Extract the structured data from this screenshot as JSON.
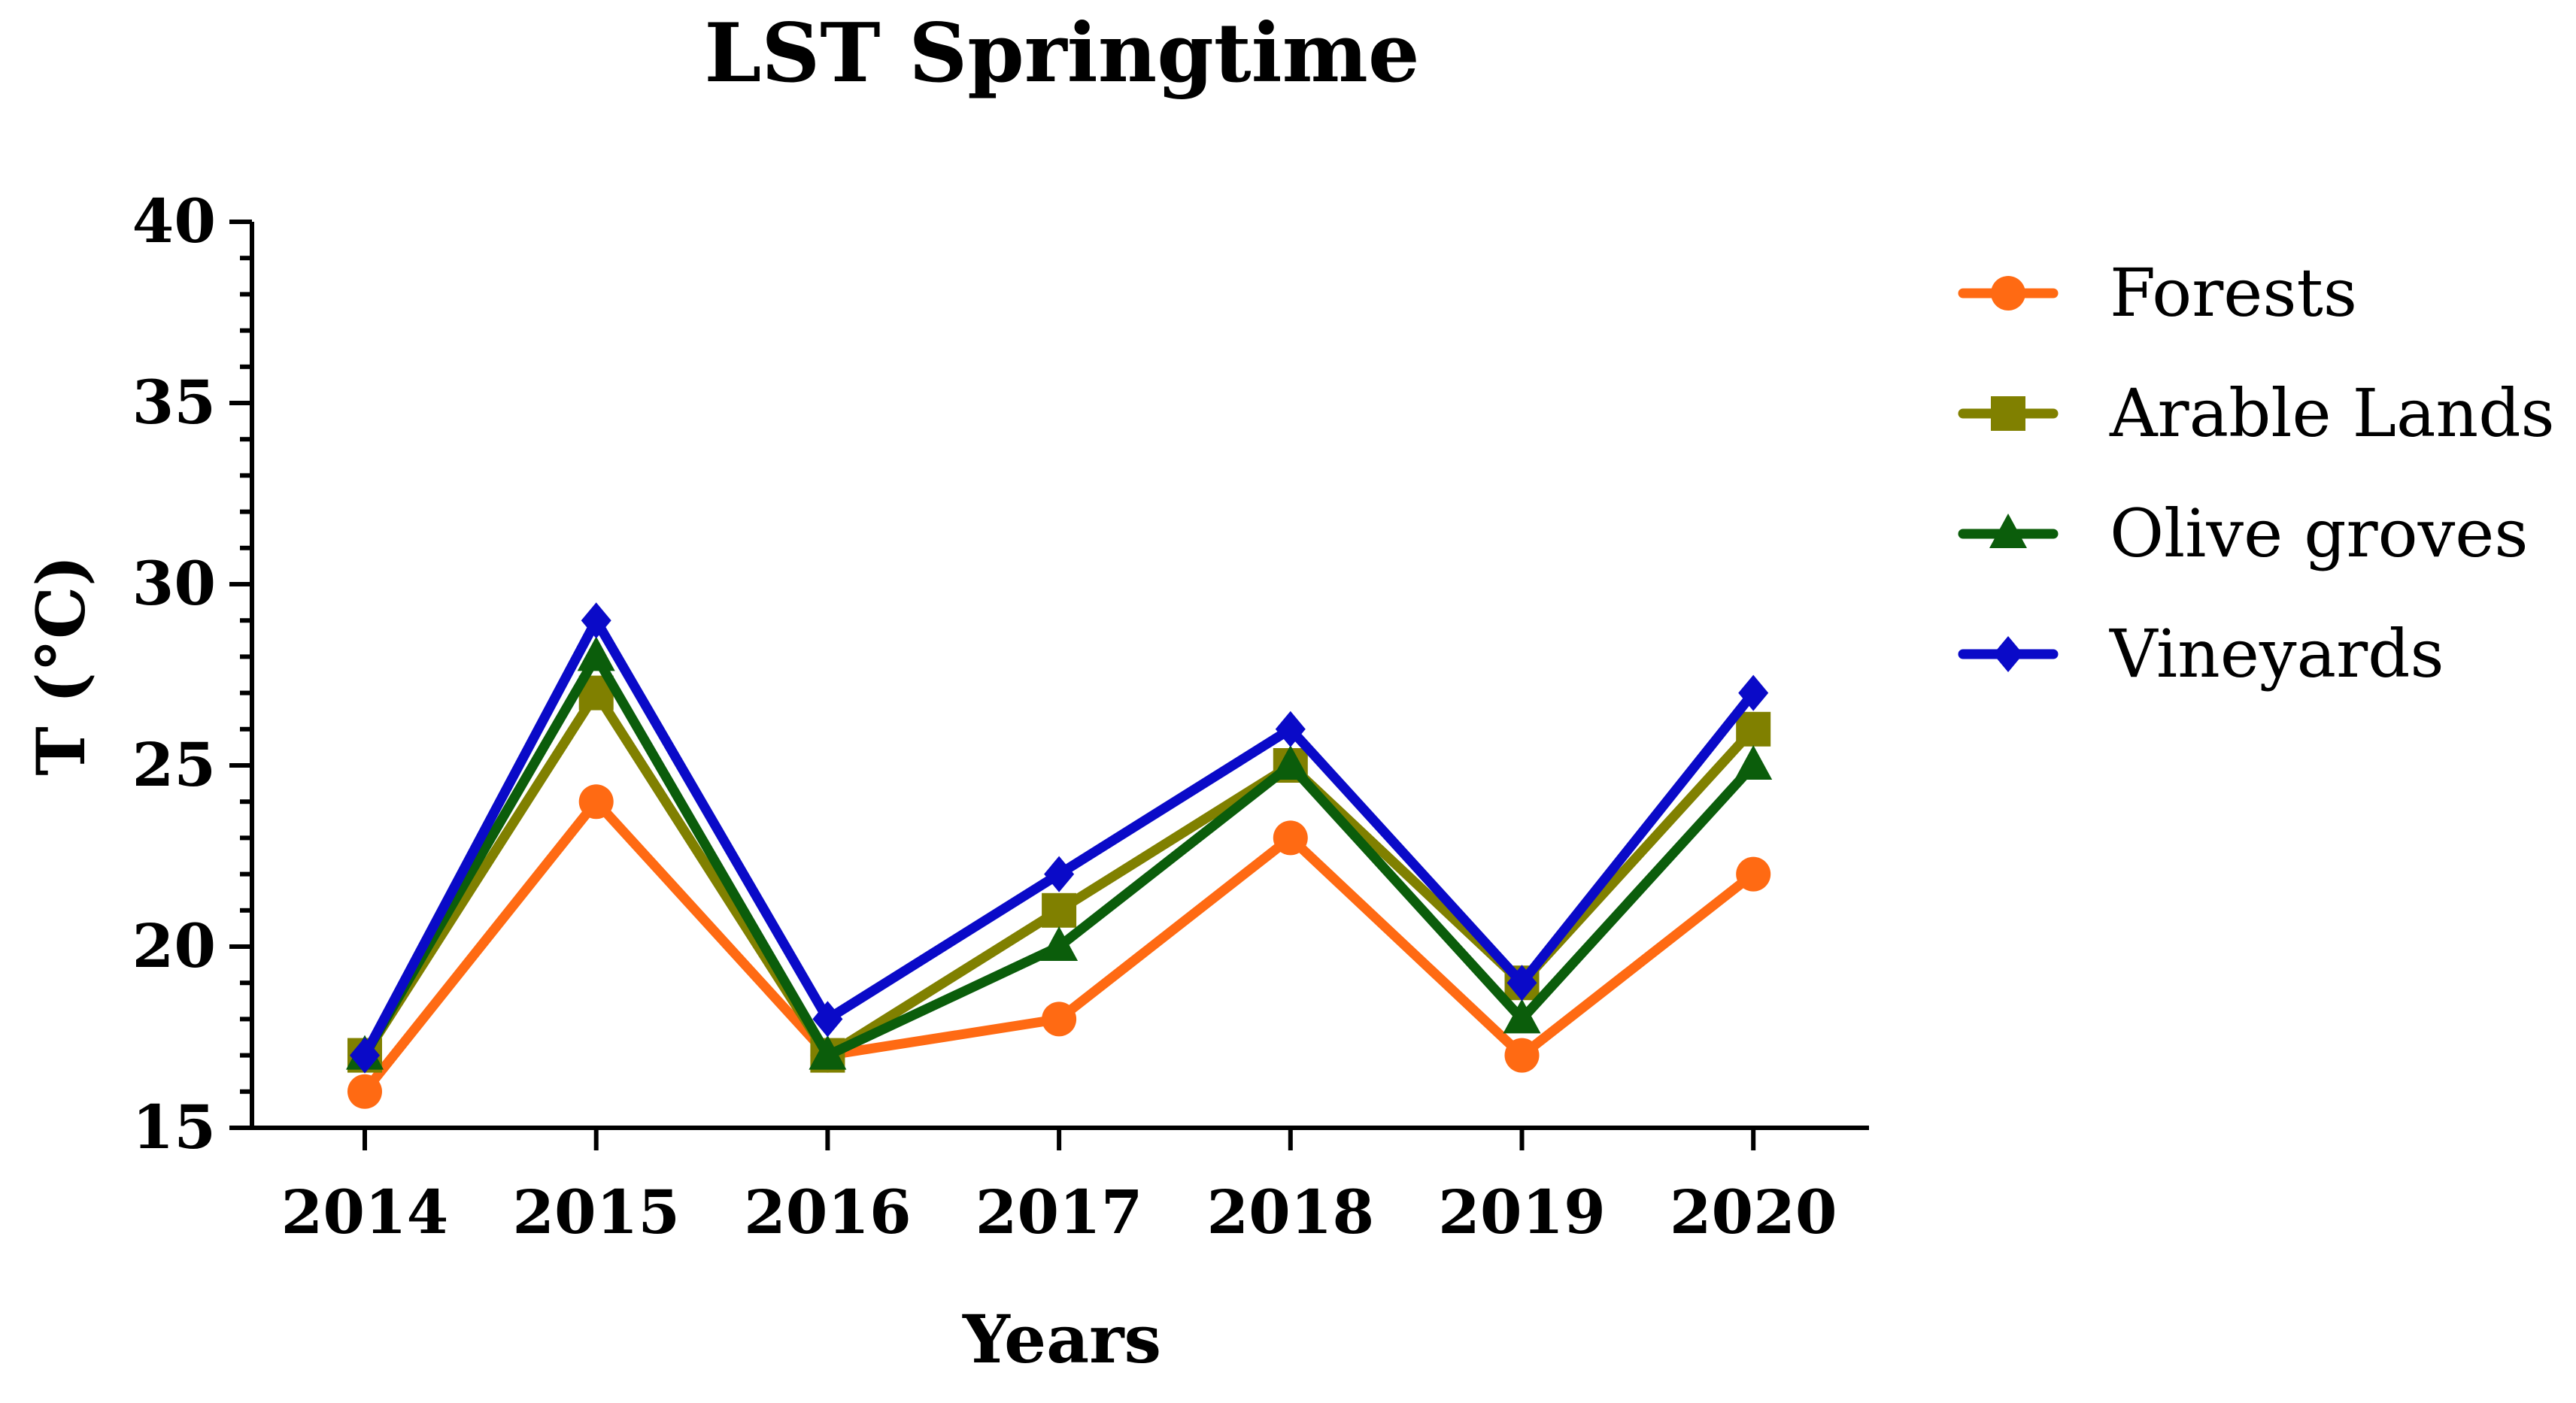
{
  "chart_data": {
    "type": "line",
    "title": "LST Springtime",
    "xlabel": "Years",
    "ylabel": "T (°C)",
    "categories": [
      "2014",
      "2015",
      "2016",
      "2017",
      "2018",
      "2019",
      "2020"
    ],
    "ylim": [
      15,
      40
    ],
    "yticks": [
      15,
      20,
      25,
      30,
      35,
      40
    ],
    "yticks_labels": [
      "15",
      "20",
      "25",
      "30",
      "35",
      "40"
    ],
    "grid": false,
    "legend_position": "right",
    "series": [
      {
        "name": "Forests",
        "color": "#FF6A13",
        "marker": "circle",
        "values": [
          16,
          24,
          17,
          18,
          23,
          17,
          22
        ]
      },
      {
        "name": "Arable Lands",
        "color": "#808000",
        "marker": "square",
        "values": [
          17,
          27,
          17,
          21,
          25,
          19,
          26
        ]
      },
      {
        "name": "Olive groves",
        "color": "#0B5D0B",
        "marker": "triangle",
        "values": [
          17,
          28,
          17,
          20,
          25,
          18,
          25
        ]
      },
      {
        "name": "Vineyards",
        "color": "#0A0AC8",
        "marker": "diamond",
        "values": [
          17,
          29,
          18,
          22,
          26,
          19,
          27
        ]
      }
    ]
  }
}
